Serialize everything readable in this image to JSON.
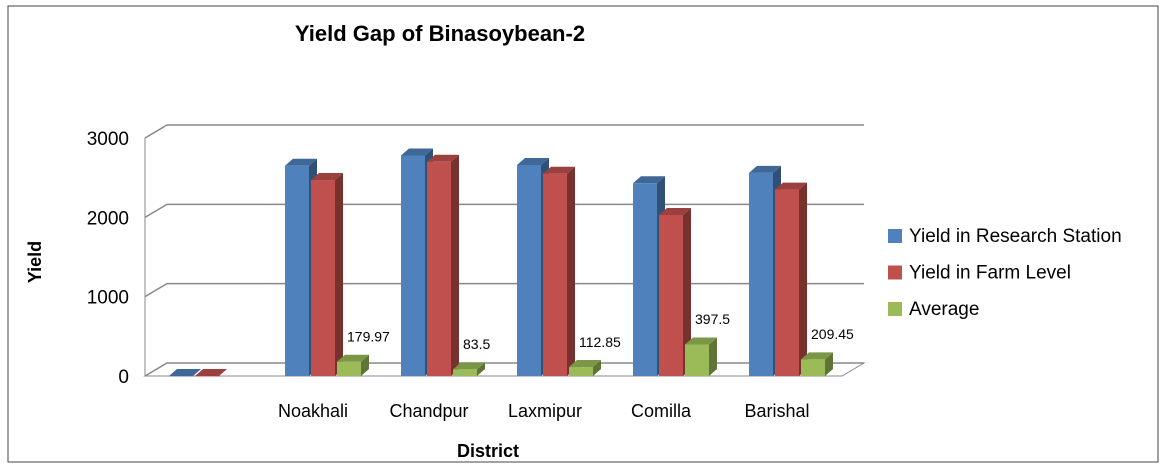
{
  "chart_data": {
    "type": "bar3d",
    "title": "Yield Gap of Binasoybean-2",
    "x_label": "District",
    "y_label": "Yield",
    "categories": [
      null,
      "Noakhali",
      "Chandpur",
      "Laxmipur",
      "Comilla",
      "Barishal"
    ],
    "series": [
      {
        "name": "Yield in Research Station",
        "color": "#4f81bd",
        "values": [
          0,
          2650,
          2780,
          2660,
          2430,
          2560
        ]
      },
      {
        "name": "Yield in Farm Level",
        "color": "#c0504d",
        "values": [
          0,
          2470,
          2700,
          2550,
          2030,
          2350
        ]
      },
      {
        "name": "Average",
        "color": "#9bbb59",
        "values": [
          null,
          179.97,
          83.5,
          112.85,
          397.5,
          209.45
        ],
        "show_value_labels": true
      }
    ],
    "ylim": [
      0,
      3000
    ],
    "yticks": [
      0,
      1000,
      2000,
      3000
    ],
    "grid": true,
    "legend": "right"
  }
}
